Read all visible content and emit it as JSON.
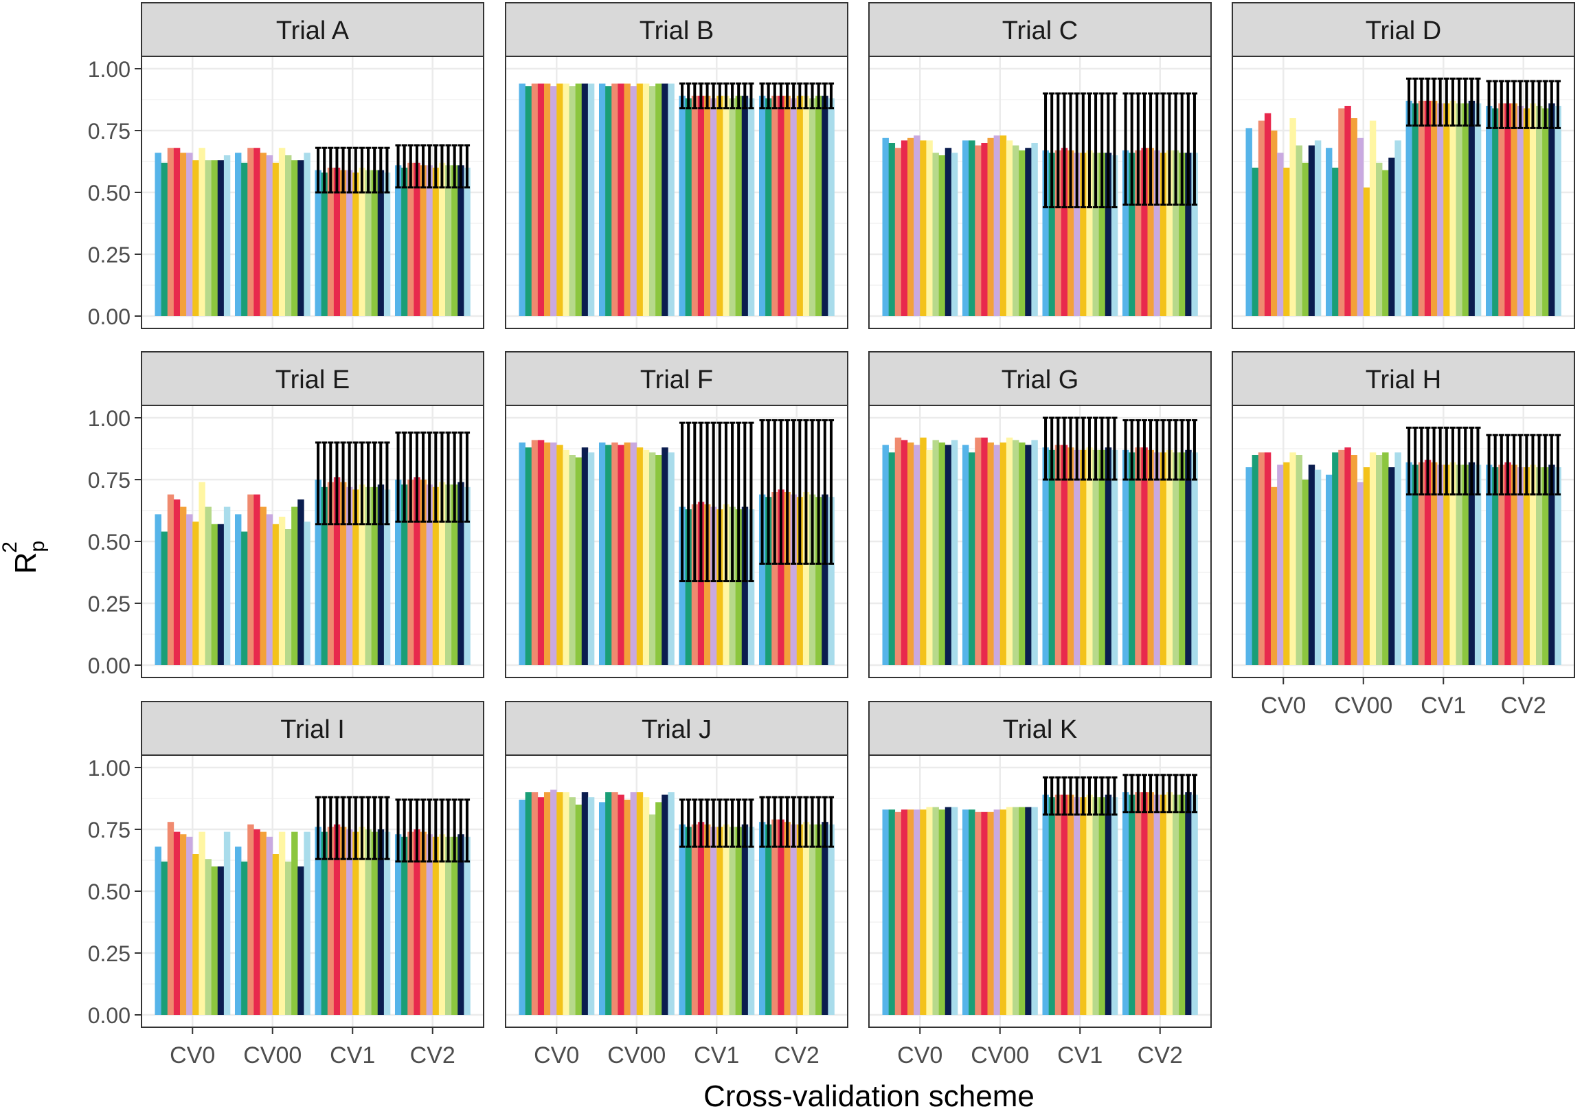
{
  "chart_data": {
    "type": "bar",
    "layout": "facet grid, 4 columns x 3 rows, shared y axis",
    "xlabel": "Cross-validation scheme",
    "ylabel_main": "R",
    "ylabel_sup": "2",
    "ylabel_sub": "p",
    "ylim": [
      0,
      1.0
    ],
    "ytick_labels": [
      "0.00",
      "0.25",
      "0.50",
      "0.75",
      "1.00"
    ],
    "categories": [
      "CV0",
      "CV00",
      "CV1",
      "CV2"
    ],
    "series_colors": [
      "#56B4E9",
      "#1A9E77",
      "#F08A6F",
      "#E8294D",
      "#F3A13A",
      "#C9A9E0",
      "#F3C21A",
      "#FFF6A3",
      "#B7D98B",
      "#8CC63F",
      "#0B1D4F",
      "#A9DCEB"
    ],
    "error_bar_schemes": [
      "CV1",
      "CV2"
    ],
    "panels": [
      {
        "title": "Trial A",
        "values": [
          [
            0.66,
            0.62,
            0.68,
            0.68,
            0.66,
            0.66,
            0.63,
            0.68,
            0.63,
            0.63,
            0.63,
            0.65
          ],
          [
            0.66,
            0.62,
            0.68,
            0.68,
            0.66,
            0.65,
            0.62,
            0.68,
            0.65,
            0.63,
            0.63,
            0.66
          ],
          [
            0.59,
            0.58,
            0.6,
            0.6,
            0.59,
            0.59,
            0.58,
            0.6,
            0.59,
            0.59,
            0.59,
            0.58
          ],
          [
            0.61,
            0.6,
            0.62,
            0.62,
            0.61,
            0.61,
            0.6,
            0.62,
            0.61,
            0.61,
            0.61,
            0.6
          ]
        ],
        "err": [
          [
            0.5,
            0.68
          ],
          [
            0.52,
            0.69
          ]
        ]
      },
      {
        "title": "Trial B",
        "values": [
          [
            0.94,
            0.93,
            0.94,
            0.94,
            0.94,
            0.93,
            0.94,
            0.94,
            0.93,
            0.94,
            0.94,
            0.94
          ],
          [
            0.94,
            0.93,
            0.94,
            0.94,
            0.94,
            0.93,
            0.94,
            0.94,
            0.93,
            0.94,
            0.94,
            0.94
          ],
          [
            0.89,
            0.88,
            0.89,
            0.89,
            0.89,
            0.88,
            0.89,
            0.89,
            0.88,
            0.89,
            0.89,
            0.88
          ],
          [
            0.89,
            0.88,
            0.89,
            0.89,
            0.89,
            0.88,
            0.89,
            0.89,
            0.88,
            0.89,
            0.89,
            0.88
          ]
        ],
        "err": [
          [
            0.84,
            0.94
          ],
          [
            0.84,
            0.94
          ]
        ]
      },
      {
        "title": "Trial C",
        "values": [
          [
            0.72,
            0.7,
            0.68,
            0.71,
            0.72,
            0.73,
            0.71,
            0.71,
            0.66,
            0.65,
            0.68,
            0.66
          ],
          [
            0.71,
            0.71,
            0.69,
            0.7,
            0.72,
            0.73,
            0.73,
            0.71,
            0.69,
            0.67,
            0.68,
            0.7
          ],
          [
            0.67,
            0.66,
            0.67,
            0.68,
            0.67,
            0.66,
            0.66,
            0.67,
            0.66,
            0.66,
            0.66,
            0.65
          ],
          [
            0.67,
            0.66,
            0.67,
            0.68,
            0.68,
            0.67,
            0.66,
            0.67,
            0.67,
            0.66,
            0.66,
            0.66
          ]
        ],
        "err": [
          [
            0.44,
            0.9
          ],
          [
            0.45,
            0.9
          ]
        ]
      },
      {
        "title": "Trial D",
        "values": [
          [
            0.76,
            0.6,
            0.79,
            0.82,
            0.75,
            0.66,
            0.6,
            0.8,
            0.69,
            0.62,
            0.69,
            0.71
          ],
          [
            0.68,
            0.6,
            0.84,
            0.85,
            0.8,
            0.72,
            0.52,
            0.79,
            0.62,
            0.59,
            0.64,
            0.71
          ],
          [
            0.87,
            0.86,
            0.87,
            0.87,
            0.87,
            0.86,
            0.86,
            0.87,
            0.86,
            0.86,
            0.87,
            0.86
          ],
          [
            0.85,
            0.84,
            0.86,
            0.86,
            0.86,
            0.85,
            0.84,
            0.86,
            0.85,
            0.84,
            0.86,
            0.85
          ]
        ],
        "err": [
          [
            0.77,
            0.96
          ],
          [
            0.76,
            0.95
          ]
        ]
      },
      {
        "title": "Trial E",
        "values": [
          [
            0.61,
            0.54,
            0.69,
            0.67,
            0.64,
            0.61,
            0.58,
            0.74,
            0.64,
            0.57,
            0.57,
            0.64
          ],
          [
            0.61,
            0.54,
            0.69,
            0.69,
            0.64,
            0.61,
            0.57,
            0.6,
            0.55,
            0.64,
            0.67,
            0.58
          ],
          [
            0.75,
            0.72,
            0.74,
            0.76,
            0.74,
            0.72,
            0.71,
            0.73,
            0.72,
            0.72,
            0.73,
            0.71
          ],
          [
            0.75,
            0.73,
            0.75,
            0.76,
            0.75,
            0.73,
            0.72,
            0.74,
            0.73,
            0.73,
            0.74,
            0.72
          ]
        ],
        "err": [
          [
            0.57,
            0.9
          ],
          [
            0.58,
            0.94
          ]
        ]
      },
      {
        "title": "Trial F",
        "values": [
          [
            0.9,
            0.88,
            0.91,
            0.91,
            0.9,
            0.9,
            0.89,
            0.87,
            0.85,
            0.84,
            0.88,
            0.86
          ],
          [
            0.9,
            0.89,
            0.9,
            0.89,
            0.9,
            0.9,
            0.88,
            0.87,
            0.86,
            0.85,
            0.88,
            0.86
          ],
          [
            0.64,
            0.63,
            0.65,
            0.66,
            0.65,
            0.64,
            0.63,
            0.65,
            0.64,
            0.63,
            0.64,
            0.63
          ],
          [
            0.69,
            0.68,
            0.7,
            0.71,
            0.7,
            0.69,
            0.68,
            0.7,
            0.69,
            0.68,
            0.69,
            0.68
          ]
        ],
        "err": [
          [
            0.34,
            0.98
          ],
          [
            0.41,
            0.99
          ]
        ]
      },
      {
        "title": "Trial G",
        "values": [
          [
            0.89,
            0.86,
            0.92,
            0.91,
            0.9,
            0.89,
            0.92,
            0.87,
            0.91,
            0.9,
            0.89,
            0.91
          ],
          [
            0.89,
            0.86,
            0.92,
            0.92,
            0.9,
            0.89,
            0.9,
            0.92,
            0.91,
            0.9,
            0.89,
            0.91
          ],
          [
            0.88,
            0.87,
            0.89,
            0.89,
            0.88,
            0.87,
            0.87,
            0.88,
            0.87,
            0.87,
            0.88,
            0.87
          ],
          [
            0.87,
            0.86,
            0.88,
            0.88,
            0.87,
            0.86,
            0.86,
            0.87,
            0.86,
            0.86,
            0.87,
            0.86
          ]
        ],
        "err": [
          [
            0.75,
            1.0
          ],
          [
            0.75,
            0.99
          ]
        ]
      },
      {
        "title": "Trial H",
        "values": [
          [
            0.8,
            0.85,
            0.86,
            0.86,
            0.72,
            0.81,
            0.82,
            0.86,
            0.85,
            0.75,
            0.81,
            0.79
          ],
          [
            0.77,
            0.86,
            0.87,
            0.88,
            0.85,
            0.74,
            0.8,
            0.86,
            0.85,
            0.86,
            0.8,
            0.86
          ],
          [
            0.82,
            0.81,
            0.82,
            0.83,
            0.82,
            0.81,
            0.81,
            0.82,
            0.81,
            0.81,
            0.82,
            0.81
          ],
          [
            0.81,
            0.8,
            0.81,
            0.82,
            0.81,
            0.8,
            0.8,
            0.81,
            0.8,
            0.8,
            0.81,
            0.8
          ]
        ],
        "err": [
          [
            0.69,
            0.96
          ],
          [
            0.69,
            0.93
          ]
        ]
      },
      {
        "title": "Trial I",
        "values": [
          [
            0.68,
            0.62,
            0.78,
            0.74,
            0.73,
            0.72,
            0.65,
            0.74,
            0.63,
            0.6,
            0.6,
            0.74
          ],
          [
            0.68,
            0.62,
            0.77,
            0.75,
            0.74,
            0.72,
            0.65,
            0.74,
            0.62,
            0.74,
            0.6,
            0.74
          ],
          [
            0.76,
            0.74,
            0.76,
            0.77,
            0.76,
            0.75,
            0.74,
            0.76,
            0.75,
            0.74,
            0.75,
            0.74
          ],
          [
            0.73,
            0.72,
            0.74,
            0.75,
            0.74,
            0.73,
            0.72,
            0.73,
            0.72,
            0.72,
            0.73,
            0.72
          ]
        ],
        "err": [
          [
            0.63,
            0.88
          ],
          [
            0.62,
            0.87
          ]
        ]
      },
      {
        "title": "Trial J",
        "values": [
          [
            0.87,
            0.9,
            0.9,
            0.88,
            0.9,
            0.91,
            0.9,
            0.9,
            0.88,
            0.85,
            0.9,
            0.88
          ],
          [
            0.86,
            0.9,
            0.9,
            0.89,
            0.87,
            0.9,
            0.9,
            0.88,
            0.81,
            0.86,
            0.89,
            0.9
          ],
          [
            0.77,
            0.76,
            0.77,
            0.78,
            0.77,
            0.76,
            0.76,
            0.77,
            0.76,
            0.76,
            0.77,
            0.76
          ],
          [
            0.78,
            0.77,
            0.79,
            0.79,
            0.78,
            0.77,
            0.77,
            0.78,
            0.77,
            0.77,
            0.78,
            0.77
          ]
        ],
        "err": [
          [
            0.68,
            0.87
          ],
          [
            0.68,
            0.88
          ]
        ]
      },
      {
        "title": "Trial K",
        "values": [
          [
            0.83,
            0.83,
            0.82,
            0.83,
            0.83,
            0.83,
            0.83,
            0.84,
            0.84,
            0.83,
            0.84,
            0.84
          ],
          [
            0.83,
            0.83,
            0.82,
            0.82,
            0.82,
            0.83,
            0.83,
            0.84,
            0.84,
            0.84,
            0.84,
            0.84
          ],
          [
            0.89,
            0.88,
            0.89,
            0.89,
            0.89,
            0.88,
            0.88,
            0.89,
            0.88,
            0.88,
            0.89,
            0.88
          ],
          [
            0.9,
            0.89,
            0.9,
            0.9,
            0.9,
            0.89,
            0.89,
            0.9,
            0.89,
            0.89,
            0.9,
            0.89
          ]
        ],
        "err": [
          [
            0.81,
            0.96
          ],
          [
            0.82,
            0.97
          ]
        ]
      }
    ]
  }
}
